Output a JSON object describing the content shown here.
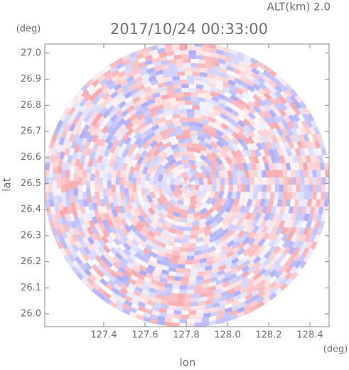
{
  "chart_data": {
    "type": "radar-ppi",
    "title": "2017/10/24 00:33:00",
    "altitude": "ALT(km) 2.0",
    "x_label": "lon",
    "y_label": "lat",
    "x_unit": "(deg)",
    "y_unit": "(deg)",
    "xlim": [
      127.114,
      128.493
    ],
    "ylim": [
      25.951,
      27.035
    ],
    "xticks": [
      127.4,
      127.6,
      127.8,
      {
        "value": 128,
        "label": "128.0"
      },
      128.2,
      128.4
    ],
    "yticks": [
      {
        "value": 26,
        "label": "26.0"
      },
      26.1,
      26.2,
      26.3,
      26.4,
      26.5,
      26.6,
      26.7,
      26.8,
      26.9,
      {
        "value": 27,
        "label": "27.0"
      }
    ]
  }
}
